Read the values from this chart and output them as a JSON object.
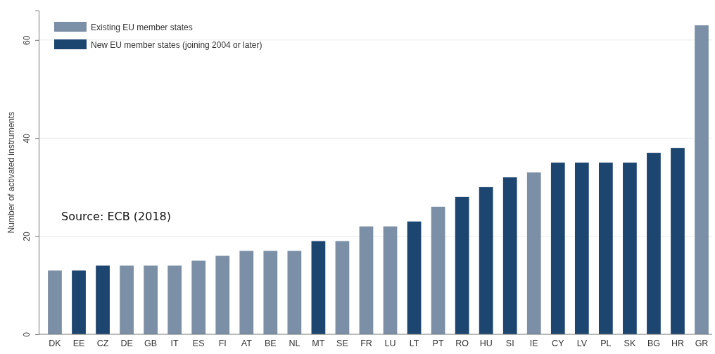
{
  "chart_data": {
    "type": "bar",
    "ylabel": "Number of activated instruments",
    "categories": [
      "DK",
      "EE",
      "CZ",
      "DE",
      "GB",
      "IT",
      "ES",
      "FI",
      "AT",
      "BE",
      "NL",
      "MT",
      "SE",
      "FR",
      "LU",
      "LT",
      "PT",
      "RO",
      "HU",
      "SI",
      "IE",
      "CY",
      "LV",
      "PL",
      "SK",
      "BG",
      "HR",
      "GR"
    ],
    "series": [
      {
        "name": "Existing EU member states",
        "color": "#7b8fa6",
        "values": [
          13,
          null,
          null,
          14,
          14,
          14,
          15,
          16,
          17,
          17,
          17,
          null,
          19,
          22,
          22,
          null,
          26,
          null,
          null,
          null,
          33,
          null,
          null,
          null,
          null,
          null,
          null,
          63
        ]
      },
      {
        "name": "New EU member states (joining 2004 or later)",
        "color": "#1c4570",
        "values": [
          null,
          13,
          14,
          null,
          null,
          null,
          null,
          null,
          null,
          null,
          null,
          19,
          null,
          null,
          null,
          23,
          null,
          28,
          30,
          32,
          null,
          35,
          35,
          35,
          35,
          37,
          38,
          null
        ]
      }
    ],
    "stacked": true,
    "ylim": [
      0,
      66
    ],
    "yticks": [
      0,
      20,
      40,
      60
    ],
    "grid": "y",
    "legend": "top left",
    "annotations": [
      "Source: ECB (2018)"
    ]
  }
}
